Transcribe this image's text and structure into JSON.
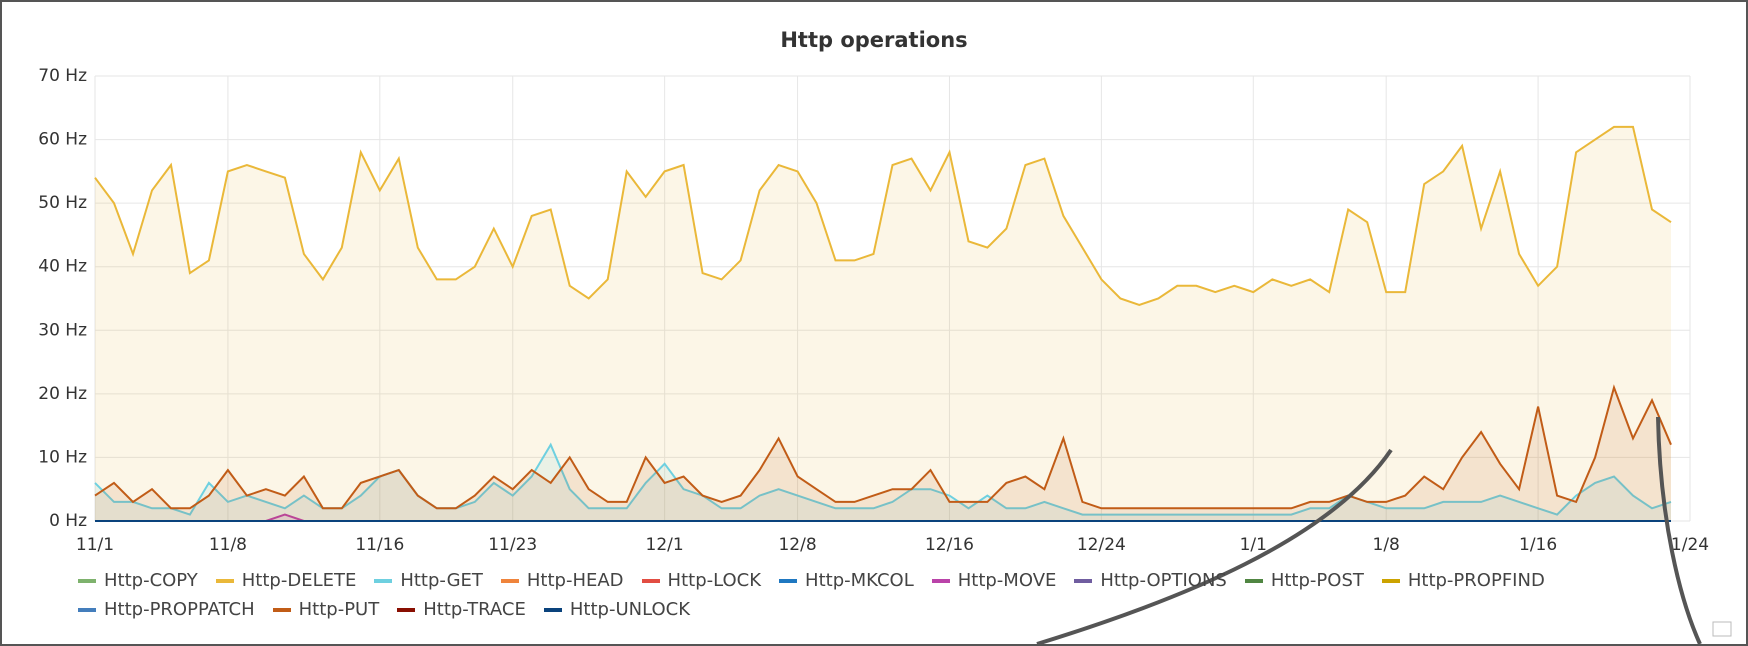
{
  "chart_data": {
    "type": "line",
    "title": "Http operations",
    "x": [
      0,
      1,
      2,
      3,
      4,
      5,
      6,
      7,
      8,
      9,
      10,
      11,
      12,
      13,
      14,
      15,
      16,
      17,
      18,
      19,
      20,
      21,
      22,
      23,
      24,
      25,
      26,
      27,
      28,
      29,
      30,
      31,
      32,
      33,
      34,
      35,
      36,
      37,
      38,
      39,
      40,
      41,
      42,
      43,
      44,
      45,
      46,
      47,
      48,
      49,
      50,
      51,
      52,
      53,
      54,
      55,
      56,
      57,
      58,
      59,
      60,
      61,
      62,
      63,
      64,
      65,
      66,
      67,
      68,
      69,
      70,
      71,
      72,
      73,
      74,
      75,
      76,
      77,
      78,
      79,
      80,
      81,
      82,
      83
    ],
    "xlim": [
      0,
      84
    ],
    "xticks": [
      {
        "value": 0,
        "label": "11/1"
      },
      {
        "value": 7,
        "label": "11/8"
      },
      {
        "value": 15,
        "label": "11/16"
      },
      {
        "value": 22,
        "label": "11/23"
      },
      {
        "value": 30,
        "label": "12/1"
      },
      {
        "value": 37,
        "label": "12/8"
      },
      {
        "value": 45,
        "label": "12/16"
      },
      {
        "value": 53,
        "label": "12/24"
      },
      {
        "value": 61,
        "label": "1/1"
      },
      {
        "value": 68,
        "label": "1/8"
      },
      {
        "value": 76,
        "label": "1/16"
      },
      {
        "value": 84,
        "label": "1/24"
      }
    ],
    "ylim": [
      0,
      70
    ],
    "yticks": [
      {
        "value": 0,
        "label": "0 Hz"
      },
      {
        "value": 10,
        "label": "10 Hz"
      },
      {
        "value": 20,
        "label": "20 Hz"
      },
      {
        "value": 30,
        "label": "30 Hz"
      },
      {
        "value": 40,
        "label": "40 Hz"
      },
      {
        "value": 50,
        "label": "50 Hz"
      },
      {
        "value": 60,
        "label": "60 Hz"
      },
      {
        "value": 70,
        "label": "70 Hz"
      }
    ],
    "grid": true,
    "series": [
      {
        "name": "Http-COPY",
        "color": "#7eb26d",
        "values": [
          0,
          0,
          0,
          0,
          0,
          0,
          0,
          0,
          0,
          0,
          0,
          0,
          0,
          0,
          0,
          0,
          0,
          0,
          0,
          0,
          0,
          0,
          0,
          0,
          0,
          0,
          0,
          0,
          0,
          0,
          0,
          0,
          0,
          0,
          0,
          0,
          0,
          0,
          0,
          0,
          0,
          0,
          0,
          0,
          0,
          0,
          0,
          0,
          0,
          0,
          0,
          0,
          0,
          0,
          0,
          0,
          0,
          0,
          0,
          0,
          0,
          0,
          0,
          0,
          0,
          0,
          0,
          0,
          0,
          0,
          0,
          0,
          0,
          0,
          0,
          0,
          0,
          0,
          0,
          0,
          0,
          0,
          0,
          0
        ]
      },
      {
        "name": "Http-DELETE",
        "color": "#eab839",
        "values": [
          54,
          50,
          42,
          52,
          56,
          39,
          41,
          55,
          56,
          55,
          54,
          42,
          38,
          43,
          58,
          52,
          57,
          43,
          38,
          38,
          40,
          46,
          40,
          48,
          49,
          37,
          35,
          38,
          55,
          51,
          55,
          56,
          39,
          38,
          41,
          52,
          56,
          55,
          50,
          41,
          41,
          42,
          56,
          57,
          52,
          58,
          44,
          43,
          46,
          56,
          57,
          48,
          43,
          38,
          35,
          34,
          35,
          37,
          37,
          36,
          37,
          36,
          38,
          37,
          38,
          36,
          49,
          47,
          36,
          36,
          53,
          55,
          59,
          46,
          55,
          42,
          37,
          40,
          58,
          60,
          62,
          62,
          49,
          47
        ]
      },
      {
        "name": "Http-GET",
        "color": "#6ed0e0",
        "values": [
          6,
          3,
          3,
          2,
          2,
          1,
          6,
          3,
          4,
          3,
          2,
          4,
          2,
          2,
          4,
          7,
          8,
          4,
          2,
          2,
          3,
          6,
          4,
          7,
          12,
          5,
          2,
          2,
          2,
          6,
          9,
          5,
          4,
          2,
          2,
          4,
          5,
          4,
          3,
          2,
          2,
          2,
          3,
          5,
          5,
          4,
          2,
          4,
          2,
          2,
          3,
          2,
          1,
          1,
          1,
          1,
          1,
          1,
          1,
          1,
          1,
          1,
          1,
          1,
          2,
          2,
          4,
          3,
          2,
          2,
          2,
          3,
          3,
          3,
          4,
          3,
          2,
          1,
          4,
          6,
          7,
          4,
          2,
          3
        ]
      },
      {
        "name": "Http-HEAD",
        "color": "#ef843c",
        "values": [
          0,
          0,
          0,
          0,
          0,
          0,
          0,
          0,
          0,
          0,
          0,
          0,
          0,
          0,
          0,
          0,
          0,
          0,
          0,
          0,
          0,
          0,
          0,
          0,
          0,
          0,
          0,
          0,
          0,
          0,
          0,
          0,
          0,
          0,
          0,
          0,
          0,
          0,
          0,
          0,
          0,
          0,
          0,
          0,
          0,
          0,
          0,
          0,
          0,
          0,
          0,
          0,
          0,
          0,
          0,
          0,
          0,
          0,
          0,
          0,
          0,
          0,
          0,
          0,
          0,
          0,
          0,
          0,
          0,
          0,
          0,
          0,
          0,
          0,
          0,
          0,
          0,
          0,
          0,
          0,
          0,
          0,
          0,
          0
        ]
      },
      {
        "name": "Http-LOCK",
        "color": "#e24d42",
        "values": [
          0,
          0,
          0,
          0,
          0,
          0,
          0,
          0,
          0,
          0,
          0,
          0,
          0,
          0,
          0,
          0,
          0,
          0,
          0,
          0,
          0,
          0,
          0,
          0,
          0,
          0,
          0,
          0,
          0,
          0,
          0,
          0,
          0,
          0,
          0,
          0,
          0,
          0,
          0,
          0,
          0,
          0,
          0,
          0,
          0,
          0,
          0,
          0,
          0,
          0,
          0,
          0,
          0,
          0,
          0,
          0,
          0,
          0,
          0,
          0,
          0,
          0,
          0,
          0,
          0,
          0,
          0,
          0,
          0,
          0,
          0,
          0,
          0,
          0,
          0,
          0,
          0,
          0,
          0,
          0,
          0,
          0,
          0,
          0
        ]
      },
      {
        "name": "Http-MKCOL",
        "color": "#1f78c1",
        "values": [
          0,
          0,
          0,
          0,
          0,
          0,
          0,
          0,
          0,
          0,
          0,
          0,
          0,
          0,
          0,
          0,
          0,
          0,
          0,
          0,
          0,
          0,
          0,
          0,
          0,
          0,
          0,
          0,
          0,
          0,
          0,
          0,
          0,
          0,
          0,
          0,
          0,
          0,
          0,
          0,
          0,
          0,
          0,
          0,
          0,
          0,
          0,
          0,
          0,
          0,
          0,
          0,
          0,
          0,
          0,
          0,
          0,
          0,
          0,
          0,
          0,
          0,
          0,
          0,
          0,
          0,
          0,
          0,
          0,
          0,
          0,
          0,
          0,
          0,
          0,
          0,
          0,
          0,
          0,
          0,
          0,
          0,
          0,
          0
        ]
      },
      {
        "name": "Http-MOVE",
        "color": "#ba43a9",
        "values": [
          0,
          0,
          0,
          0,
          0,
          0,
          0,
          0,
          0,
          0,
          1,
          0,
          0,
          0,
          0,
          0,
          0,
          0,
          0,
          0,
          0,
          0,
          0,
          0,
          0,
          0,
          0,
          0,
          0,
          0,
          0,
          0,
          0,
          0,
          0,
          0,
          0,
          0,
          0,
          0,
          0,
          0,
          0,
          0,
          0,
          0,
          0,
          0,
          0,
          0,
          0,
          0,
          0,
          0,
          0,
          0,
          0,
          0,
          0,
          0,
          0,
          0,
          0,
          0,
          0,
          0,
          0,
          0,
          0,
          0,
          0,
          0,
          0,
          0,
          0,
          0,
          0,
          0,
          0,
          0,
          0,
          0,
          0,
          0
        ]
      },
      {
        "name": "Http-OPTIONS",
        "color": "#705da0",
        "values": [
          0,
          0,
          0,
          0,
          0,
          0,
          0,
          0,
          0,
          0,
          0,
          0,
          0,
          0,
          0,
          0,
          0,
          0,
          0,
          0,
          0,
          0,
          0,
          0,
          0,
          0,
          0,
          0,
          0,
          0,
          0,
          0,
          0,
          0,
          0,
          0,
          0,
          0,
          0,
          0,
          0,
          0,
          0,
          0,
          0,
          0,
          0,
          0,
          0,
          0,
          0,
          0,
          0,
          0,
          0,
          0,
          0,
          0,
          0,
          0,
          0,
          0,
          0,
          0,
          0,
          0,
          0,
          0,
          0,
          0,
          0,
          0,
          0,
          0,
          0,
          0,
          0,
          0,
          0,
          0,
          0,
          0,
          0,
          0
        ]
      },
      {
        "name": "Http-POST",
        "color": "#508642",
        "values": [
          0,
          0,
          0,
          0,
          0,
          0,
          0,
          0,
          0,
          0,
          0,
          0,
          0,
          0,
          0,
          0,
          0,
          0,
          0,
          0,
          0,
          0,
          0,
          0,
          0,
          0,
          0,
          0,
          0,
          0,
          0,
          0,
          0,
          0,
          0,
          0,
          0,
          0,
          0,
          0,
          0,
          0,
          0,
          0,
          0,
          0,
          0,
          0,
          0,
          0,
          0,
          0,
          0,
          0,
          0,
          0,
          0,
          0,
          0,
          0,
          0,
          0,
          0,
          0,
          0,
          0,
          0,
          0,
          0,
          0,
          0,
          0,
          0,
          0,
          0,
          0,
          0,
          0,
          0,
          0,
          0,
          0,
          0,
          0
        ]
      },
      {
        "name": "Http-PROPFIND",
        "color": "#cca300",
        "values": [
          0,
          0,
          0,
          0,
          0,
          0,
          0,
          0,
          0,
          0,
          0,
          0,
          0,
          0,
          0,
          0,
          0,
          0,
          0,
          0,
          0,
          0,
          0,
          0,
          0,
          0,
          0,
          0,
          0,
          0,
          0,
          0,
          0,
          0,
          0,
          0,
          0,
          0,
          0,
          0,
          0,
          0,
          0,
          0,
          0,
          0,
          0,
          0,
          0,
          0,
          0,
          0,
          0,
          0,
          0,
          0,
          0,
          0,
          0,
          0,
          0,
          0,
          0,
          0,
          0,
          0,
          0,
          0,
          0,
          0,
          0,
          0,
          0,
          0,
          0,
          0,
          0,
          0,
          0,
          0,
          0,
          0,
          0,
          0
        ]
      },
      {
        "name": "Http-PROPPATCH",
        "color": "#447ebc",
        "values": [
          0,
          0,
          0,
          0,
          0,
          0,
          0,
          0,
          0,
          0,
          0,
          0,
          0,
          0,
          0,
          0,
          0,
          0,
          0,
          0,
          0,
          0,
          0,
          0,
          0,
          0,
          0,
          0,
          0,
          0,
          0,
          0,
          0,
          0,
          0,
          0,
          0,
          0,
          0,
          0,
          0,
          0,
          0,
          0,
          0,
          0,
          0,
          0,
          0,
          0,
          0,
          0,
          0,
          0,
          0,
          0,
          0,
          0,
          0,
          0,
          0,
          0,
          0,
          0,
          0,
          0,
          0,
          0,
          0,
          0,
          0,
          0,
          0,
          0,
          0,
          0,
          0,
          0,
          0,
          0,
          0,
          0,
          0,
          0
        ]
      },
      {
        "name": "Http-PUT",
        "color": "#c15c17",
        "values": [
          4,
          6,
          3,
          5,
          2,
          2,
          4,
          8,
          4,
          5,
          4,
          7,
          2,
          2,
          6,
          7,
          8,
          4,
          2,
          2,
          4,
          7,
          5,
          8,
          6,
          10,
          5,
          3,
          3,
          10,
          6,
          7,
          4,
          3,
          4,
          8,
          13,
          7,
          5,
          3,
          3,
          4,
          5,
          5,
          8,
          3,
          3,
          3,
          6,
          7,
          5,
          13,
          3,
          2,
          2,
          2,
          2,
          2,
          2,
          2,
          2,
          2,
          2,
          2,
          3,
          3,
          4,
          3,
          3,
          4,
          7,
          5,
          10,
          14,
          9,
          5,
          18,
          4,
          3,
          10,
          21,
          13,
          19,
          12
        ]
      },
      {
        "name": "Http-TRACE",
        "color": "#890f02",
        "values": [
          0,
          0,
          0,
          0,
          0,
          0,
          0,
          0,
          0,
          0,
          0,
          0,
          0,
          0,
          0,
          0,
          0,
          0,
          0,
          0,
          0,
          0,
          0,
          0,
          0,
          0,
          0,
          0,
          0,
          0,
          0,
          0,
          0,
          0,
          0,
          0,
          0,
          0,
          0,
          0,
          0,
          0,
          0,
          0,
          0,
          0,
          0,
          0,
          0,
          0,
          0,
          0,
          0,
          0,
          0,
          0,
          0,
          0,
          0,
          0,
          0,
          0,
          0,
          0,
          0,
          0,
          0,
          0,
          0,
          0,
          0,
          0,
          0,
          0,
          0,
          0,
          0,
          0,
          0,
          0,
          0,
          0,
          0,
          0
        ]
      },
      {
        "name": "Http-UNLOCK",
        "color": "#0a437c",
        "values": [
          0,
          0,
          0,
          0,
          0,
          0,
          0,
          0,
          0,
          0,
          0,
          0,
          0,
          0,
          0,
          0,
          0,
          0,
          0,
          0,
          0,
          0,
          0,
          0,
          0,
          0,
          0,
          0,
          0,
          0,
          0,
          0,
          0,
          0,
          0,
          0,
          0,
          0,
          0,
          0,
          0,
          0,
          0,
          0,
          0,
          0,
          0,
          0,
          0,
          0,
          0,
          0,
          0,
          0,
          0,
          0,
          0,
          0,
          0,
          0,
          0,
          0,
          0,
          0,
          0,
          0,
          0,
          0,
          0,
          0,
          0,
          0,
          0,
          0,
          0,
          0,
          0,
          0,
          0,
          0,
          0,
          0,
          0,
          0
        ]
      }
    ]
  }
}
